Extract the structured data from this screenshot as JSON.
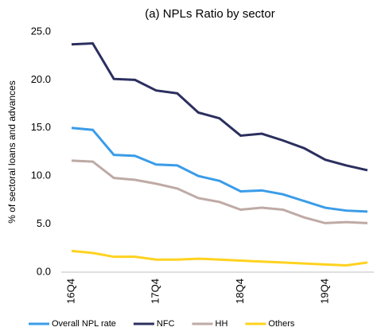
{
  "chart_data": {
    "type": "line",
    "title": "(a) NPLs Ratio by sector",
    "y_label": "% of sectoral loans and advances",
    "categories": [
      "16Q4",
      null,
      null,
      null,
      "17Q4",
      null,
      null,
      null,
      "18Q4",
      null,
      null,
      null,
      "19Q4",
      null,
      null
    ],
    "series": [
      {
        "name": "Overall NPL rate",
        "color": "#3a9ce8",
        "values": [
          15.0,
          14.8,
          12.2,
          12.1,
          11.2,
          11.1,
          10.0,
          9.5,
          8.4,
          8.5,
          8.1,
          7.4,
          6.7,
          6.4,
          6.3
        ]
      },
      {
        "name": "NFC",
        "color": "#2b2f5e",
        "values": [
          23.7,
          23.8,
          20.1,
          20.0,
          18.9,
          18.6,
          16.6,
          16.0,
          14.2,
          14.4,
          13.7,
          12.9,
          11.7,
          11.1,
          10.6
        ]
      },
      {
        "name": "HH",
        "color": "#bfaaa5",
        "values": [
          11.6,
          11.5,
          9.8,
          9.6,
          9.2,
          8.7,
          7.7,
          7.3,
          6.5,
          6.7,
          6.5,
          5.7,
          5.1,
          5.2,
          5.1
        ]
      },
      {
        "name": "Others",
        "color": "#ffd21f",
        "values": [
          2.2,
          2.0,
          1.6,
          1.6,
          1.3,
          1.3,
          1.4,
          1.3,
          1.2,
          1.1,
          1.0,
          0.9,
          0.8,
          0.7,
          1.0
        ]
      }
    ],
    "ylim": [
      0,
      25
    ],
    "yticks": [
      {
        "value": 0,
        "label": "0.0"
      },
      {
        "value": 5,
        "label": "5.0"
      },
      {
        "value": 10,
        "label": "10.0"
      },
      {
        "value": 15,
        "label": "15.0"
      },
      {
        "value": 20,
        "label": "20.0"
      },
      {
        "value": 25,
        "label": "25.0"
      }
    ],
    "grid": false,
    "legend": "bottom"
  }
}
